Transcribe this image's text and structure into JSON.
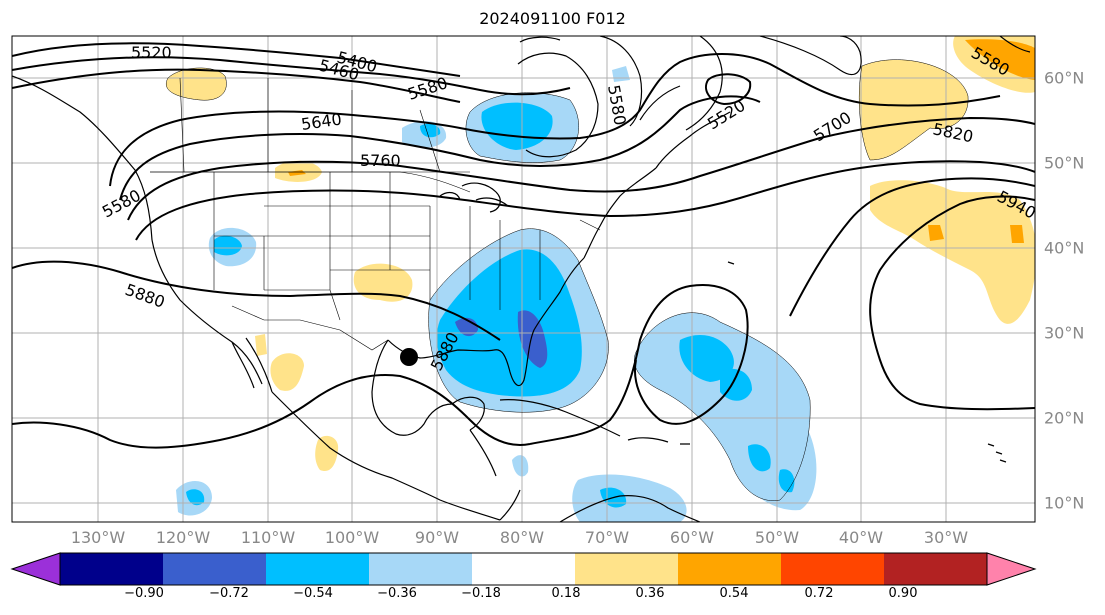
{
  "title": "2024091100 F012",
  "longitude_labels": [
    "130°W",
    "120°W",
    "110°W",
    "100°W",
    "90°W",
    "80°W",
    "70°W",
    "60°W",
    "50°W",
    "40°W",
    "30°W"
  ],
  "latitude_labels": [
    "60°N",
    "50°N",
    "40°N",
    "30°N",
    "20°N",
    "10°N"
  ],
  "contour_labels": [
    "5520",
    "5400",
    "5460",
    "5580",
    "5640",
    "5760",
    "5580",
    "5880",
    "5880",
    "5520",
    "5700",
    "5820",
    "5940",
    "5580",
    "5580"
  ],
  "colorbar": {
    "ticks": [
      "−0.90",
      "−0.72",
      "−0.54",
      "−0.36",
      "−0.18",
      "0.18",
      "0.36",
      "0.54",
      "0.72",
      "0.90"
    ],
    "colors": [
      "#9b30d9",
      "#00008b",
      "#3a5fcd",
      "#00bfff",
      "#a7d8f7",
      "#ffffff",
      "#ffe38a",
      "#ffa500",
      "#ff4500",
      "#b22222",
      "#ff82ab"
    ]
  },
  "fill_colors": {
    "light_blue": "#a7d8f7",
    "blue": "#00bfff",
    "dark_blue": "#3a5fcd",
    "yellow": "#ffe38a",
    "orange": "#ffa500"
  },
  "marker": "storm-center-dot"
}
